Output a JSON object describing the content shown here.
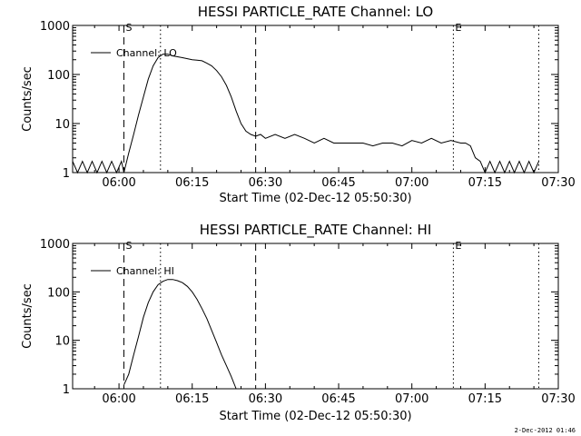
{
  "chart_data": [
    {
      "type": "line",
      "title": "HESSI PARTICLE_RATE Channel: LO",
      "xlabel": "Start Time (02-Dec-12 05:50:30)",
      "ylabel": "Counts/sec",
      "yscale": "log",
      "ylim": [
        1,
        1000
      ],
      "xlim": [
        "05:50:30",
        "07:30:00"
      ],
      "x_ticks": [
        "06:00",
        "06:15",
        "06:30",
        "06:45",
        "07:00",
        "07:15",
        "07:30"
      ],
      "y_ticks": [
        "1",
        "10",
        "100",
        "1000"
      ],
      "legend": {
        "placement": "top-left",
        "entries": [
          "Channel: LO"
        ]
      },
      "markers": [
        {
          "label": "S",
          "time": "06:01:00",
          "style": "dashed"
        },
        {
          "label": "",
          "time": "06:08:30",
          "style": "dotted"
        },
        {
          "label": "",
          "time": "06:28:00",
          "style": "dashed"
        },
        {
          "label": "E",
          "time": "07:08:30",
          "style": "dotted"
        },
        {
          "label": "",
          "time": "07:26:00",
          "style": "dotted"
        }
      ],
      "series": [
        {
          "name": "Channel: LO",
          "x": [
            "05:50:30",
            "05:51:30",
            "05:52:30",
            "05:53:30",
            "05:54:30",
            "05:55:30",
            "05:56:30",
            "05:57:30",
            "05:58:30",
            "05:59:30",
            "06:00:30",
            "06:01:00",
            "06:02:00",
            "06:03:00",
            "06:04:00",
            "06:05:00",
            "06:06:00",
            "06:07:00",
            "06:08:00",
            "06:09:00",
            "06:10:00",
            "06:11:00",
            "06:12:00",
            "06:13:00",
            "06:14:00",
            "06:15:00",
            "06:16:00",
            "06:17:00",
            "06:18:00",
            "06:19:00",
            "06:20:00",
            "06:21:00",
            "06:22:00",
            "06:23:00",
            "06:24:00",
            "06:25:00",
            "06:26:00",
            "06:27:00",
            "06:28:00",
            "06:29:00",
            "06:30:00",
            "06:32:00",
            "06:34:00",
            "06:36:00",
            "06:38:00",
            "06:40:00",
            "06:42:00",
            "06:44:00",
            "06:46:00",
            "06:48:00",
            "06:50:00",
            "06:52:00",
            "06:54:00",
            "06:56:00",
            "06:58:00",
            "07:00:00",
            "07:02:00",
            "07:04:00",
            "07:06:00",
            "07:08:00",
            "07:10:00",
            "07:11:00",
            "07:12:00",
            "07:13:00",
            "07:14:00",
            "07:15:00",
            "07:16:00",
            "07:17:00",
            "07:18:00",
            "07:19:00",
            "07:20:00",
            "07:21:00",
            "07:22:00",
            "07:23:00",
            "07:24:00",
            "07:25:00",
            "07:26:00"
          ],
          "y": [
            1.7,
            1,
            1.7,
            1,
            1.7,
            1,
            1.7,
            1,
            1.7,
            1,
            1.7,
            1,
            2.5,
            6,
            15,
            35,
            80,
            150,
            220,
            260,
            260,
            240,
            230,
            220,
            210,
            200,
            195,
            190,
            170,
            150,
            120,
            90,
            60,
            35,
            18,
            10,
            7,
            6,
            5.5,
            6,
            5,
            6,
            5,
            6,
            5,
            4,
            5,
            4,
            4,
            4,
            4,
            3.5,
            4,
            4,
            3.5,
            4.5,
            4,
            5,
            4,
            4.5,
            4,
            4,
            3.5,
            2,
            1.7,
            1,
            1.7,
            1,
            1.7,
            1,
            1.7,
            1,
            1.7,
            1,
            1.7,
            1,
            1.7
          ]
        }
      ]
    },
    {
      "type": "line",
      "title": "HESSI PARTICLE_RATE Channel: HI",
      "xlabel": "Start Time (02-Dec-12 05:50:30)",
      "ylabel": "Counts/sec",
      "yscale": "log",
      "ylim": [
        1,
        1000
      ],
      "xlim": [
        "05:50:30",
        "07:30:00"
      ],
      "x_ticks": [
        "06:00",
        "06:15",
        "06:30",
        "06:45",
        "07:00",
        "07:15",
        "07:30"
      ],
      "y_ticks": [
        "1",
        "10",
        "100",
        "1000"
      ],
      "legend": {
        "placement": "top-left",
        "entries": [
          "Channel: HI"
        ]
      },
      "markers": [
        {
          "label": "S",
          "time": "06:01:00",
          "style": "dashed"
        },
        {
          "label": "",
          "time": "06:08:30",
          "style": "dotted"
        },
        {
          "label": "",
          "time": "06:28:00",
          "style": "dashed"
        },
        {
          "label": "E",
          "time": "07:08:30",
          "style": "dotted"
        },
        {
          "label": "",
          "time": "07:26:00",
          "style": "dotted"
        }
      ],
      "series": [
        {
          "name": "Channel: HI",
          "x": [
            "06:01:00",
            "06:02:00",
            "06:03:00",
            "06:04:00",
            "06:05:00",
            "06:06:00",
            "06:07:00",
            "06:08:00",
            "06:09:00",
            "06:10:00",
            "06:11:00",
            "06:12:00",
            "06:13:00",
            "06:14:00",
            "06:15:00",
            "06:16:00",
            "06:17:00",
            "06:18:00",
            "06:19:00",
            "06:20:00",
            "06:21:00",
            "06:22:00",
            "06:23:00",
            "06:24:00"
          ],
          "y": [
            1.2,
            2,
            5,
            12,
            30,
            60,
            100,
            140,
            165,
            180,
            180,
            170,
            155,
            130,
            100,
            70,
            45,
            28,
            16,
            9,
            5,
            3,
            1.8,
            1
          ]
        }
      ]
    }
  ],
  "footer": "2-Dec-2012 01:46"
}
